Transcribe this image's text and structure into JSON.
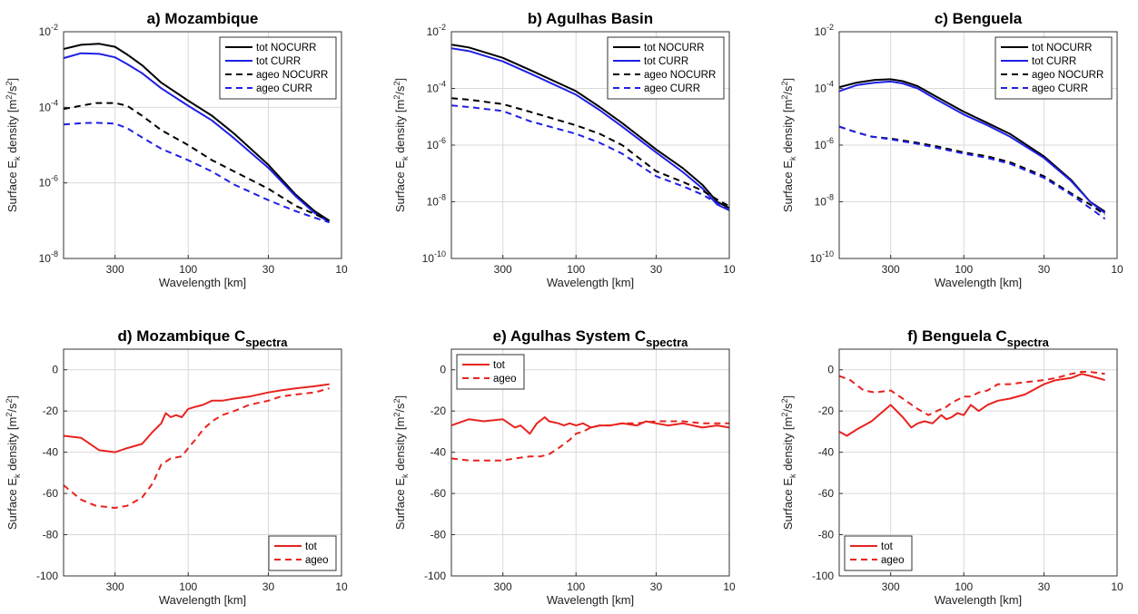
{
  "colors": {
    "black": "#000000",
    "blue": "#1f1fe6",
    "red": "#e8231f",
    "grid": "#d9d9d9"
  },
  "labels": {
    "xlabel": "Wavelength [km]",
    "ylabel_prefix": "Surface E",
    "ylabel_sub": "k",
    "ylabel_mid": " density [m",
    "ylabel_sup1": "2",
    "ylabel_mid2": "/s",
    "ylabel_sup2": "2",
    "ylabel_end": "]"
  },
  "chart_data": [
    {
      "panel": "a",
      "type": "line",
      "title": "a) Mozambique",
      "title_sub": "",
      "xlabel": "Wavelength [km]",
      "xscale": "log-reversed",
      "xlim": [
        650,
        10
      ],
      "xticks": [
        300,
        100,
        30,
        10
      ],
      "xtick_labels": [
        "300",
        "100",
        "30",
        "10"
      ],
      "yscale": "log",
      "ylim": [
        1e-08,
        0.01
      ],
      "yticks": [
        1e-08,
        1e-06,
        0.0001,
        0.01
      ],
      "ytick_exps": [
        "-8",
        "-6",
        "-4",
        "-2"
      ],
      "grid": true,
      "legend_position": "top-right",
      "series": [
        {
          "name": "tot NOCURR",
          "color": "#000000",
          "dash": "solid",
          "x": [
            650,
            500,
            380,
            300,
            250,
            200,
            150,
            100,
            70,
            50,
            30,
            20,
            15,
            12
          ],
          "y": [
            0.0035,
            0.0045,
            0.0048,
            0.004,
            0.0025,
            0.0013,
            0.00045,
            0.00015,
            6e-05,
            2e-05,
            3e-06,
            5e-07,
            1.8e-07,
            1e-07
          ]
        },
        {
          "name": "tot CURR",
          "color": "#1f1fe6",
          "dash": "solid",
          "x": [
            650,
            500,
            380,
            300,
            250,
            200,
            150,
            100,
            70,
            50,
            30,
            20,
            15,
            12
          ],
          "y": [
            0.002,
            0.0027,
            0.0026,
            0.0021,
            0.0014,
            0.0008,
            0.00032,
            0.00011,
            4.5e-05,
            1.5e-05,
            2.5e-06,
            4.5e-07,
            1.6e-07,
            9e-08
          ]
        },
        {
          "name": "ageo NOCURR",
          "color": "#000000",
          "dash": "dashed",
          "x": [
            650,
            500,
            400,
            300,
            250,
            200,
            150,
            100,
            70,
            50,
            30,
            20,
            15,
            12
          ],
          "y": [
            9e-05,
            0.00011,
            0.00013,
            0.00013,
            0.00011,
            6e-05,
            2.5e-05,
            1e-05,
            4e-06,
            2e-06,
            7e-07,
            2.5e-07,
            1.5e-07,
            1e-07
          ]
        },
        {
          "name": "ageo CURR",
          "color": "#1f1fe6",
          "dash": "dashed",
          "x": [
            650,
            500,
            400,
            300,
            250,
            200,
            150,
            100,
            70,
            50,
            30,
            20,
            15,
            12
          ],
          "y": [
            3.5e-05,
            3.8e-05,
            3.9e-05,
            3.7e-05,
            2.8e-05,
            1.6e-05,
            8e-06,
            4e-06,
            2e-06,
            9e-07,
            3.5e-07,
            1.8e-07,
            1.2e-07,
            9e-08
          ]
        }
      ]
    },
    {
      "panel": "b",
      "type": "line",
      "title": "b) Agulhas Basin",
      "title_sub": "",
      "xlabel": "Wavelength [km]",
      "xscale": "log-reversed",
      "xlim": [
        650,
        10
      ],
      "xticks": [
        300,
        100,
        30,
        10
      ],
      "xtick_labels": [
        "300",
        "100",
        "30",
        "10"
      ],
      "yscale": "log",
      "ylim": [
        1e-10,
        0.01
      ],
      "yticks": [
        1e-10,
        1e-08,
        1e-06,
        0.0001,
        0.01
      ],
      "ytick_exps": [
        "-10",
        "-8",
        "-6",
        "-4",
        "-2"
      ],
      "grid": true,
      "legend_position": "top-right",
      "series": [
        {
          "name": "tot NOCURR",
          "color": "#000000",
          "dash": "solid",
          "x": [
            650,
            500,
            300,
            200,
            100,
            70,
            50,
            30,
            20,
            15,
            12,
            10
          ],
          "y": [
            0.0035,
            0.0028,
            0.0012,
            0.00045,
            8e-05,
            2.2e-05,
            6e-06,
            7e-07,
            1.5e-07,
            4e-08,
            1e-08,
            6e-09
          ]
        },
        {
          "name": "tot CURR",
          "color": "#1f1fe6",
          "dash": "solid",
          "x": [
            650,
            500,
            300,
            200,
            100,
            70,
            50,
            30,
            20,
            15,
            12,
            10
          ],
          "y": [
            0.0026,
            0.0021,
            0.0009,
            0.00034,
            6e-05,
            1.7e-05,
            4.5e-06,
            5.5e-07,
            1.1e-07,
            3e-08,
            8e-09,
            5e-09
          ]
        },
        {
          "name": "ageo NOCURR",
          "color": "#000000",
          "dash": "dashed",
          "x": [
            650,
            500,
            300,
            200,
            100,
            70,
            50,
            30,
            20,
            15,
            12,
            10
          ],
          "y": [
            4.5e-05,
            4e-05,
            2.8e-05,
            1.5e-05,
            5e-06,
            2.5e-06,
            1e-06,
            1.2e-07,
            5e-08,
            2.5e-08,
            1.2e-08,
            7e-09
          ]
        },
        {
          "name": "ageo CURR",
          "color": "#1f1fe6",
          "dash": "dashed",
          "x": [
            650,
            500,
            300,
            200,
            100,
            70,
            50,
            30,
            20,
            15,
            12,
            10
          ],
          "y": [
            2.5e-05,
            2.2e-05,
            1.6e-05,
            7e-06,
            2.5e-06,
            1.2e-06,
            5e-07,
            8e-08,
            3.5e-08,
            1.8e-08,
            9e-09,
            5e-09
          ]
        }
      ]
    },
    {
      "panel": "c",
      "type": "line",
      "title": "c) Benguela",
      "title_sub": "",
      "xlabel": "Wavelength [km]",
      "xscale": "log-reversed",
      "xlim": [
        650,
        10
      ],
      "xticks": [
        300,
        100,
        30,
        10
      ],
      "xtick_labels": [
        "300",
        "100",
        "30",
        "10"
      ],
      "yscale": "log",
      "ylim": [
        1e-10,
        0.01
      ],
      "yticks": [
        1e-10,
        1e-08,
        1e-06,
        0.0001,
        0.01
      ],
      "ytick_exps": [
        "-10",
        "-8",
        "-6",
        "-4",
        "-2"
      ],
      "grid": true,
      "legend_position": "top-right",
      "series": [
        {
          "name": "tot NOCURR",
          "color": "#000000",
          "dash": "solid",
          "x": [
            650,
            500,
            380,
            300,
            250,
            200,
            150,
            100,
            70,
            50,
            30,
            20,
            15,
            12
          ],
          "y": [
            0.00011,
            0.00016,
            0.0002,
            0.00021,
            0.00018,
            0.00012,
            5e-05,
            1.5e-05,
            6e-06,
            2.5e-06,
            4e-07,
            6e-08,
            1e-08,
            4.5e-09
          ]
        },
        {
          "name": "tot CURR",
          "color": "#1f1fe6",
          "dash": "solid",
          "x": [
            650,
            500,
            380,
            300,
            250,
            200,
            150,
            100,
            70,
            50,
            30,
            20,
            15,
            12
          ],
          "y": [
            8e-05,
            0.00013,
            0.00016,
            0.000175,
            0.00015,
            0.0001,
            4e-05,
            1.2e-05,
            5e-06,
            2e-06,
            3.5e-07,
            5.5e-08,
            1e-08,
            4e-09
          ]
        },
        {
          "name": "ageo NOCURR",
          "color": "#000000",
          "dash": "dashed",
          "x": [
            650,
            500,
            400,
            300,
            200,
            150,
            100,
            70,
            50,
            30,
            20,
            15,
            12
          ],
          "y": [
            4.5e-06,
            2.8e-06,
            2e-06,
            1.7e-06,
            1.2e-06,
            9e-07,
            5.5e-07,
            4e-07,
            2.5e-07,
            8e-08,
            2e-08,
            8e-09,
            3.5e-09
          ]
        },
        {
          "name": "ageo CURR",
          "color": "#1f1fe6",
          "dash": "dashed",
          "x": [
            650,
            500,
            400,
            300,
            200,
            150,
            100,
            70,
            50,
            30,
            20,
            15,
            12
          ],
          "y": [
            4.5e-06,
            2.8e-06,
            2e-06,
            1.6e-06,
            1.1e-06,
            8e-07,
            5e-07,
            3.5e-07,
            2.2e-07,
            7e-08,
            1.8e-08,
            6e-09,
            2.5e-09
          ]
        }
      ]
    },
    {
      "panel": "d",
      "type": "line",
      "title": "d) Mozambique C",
      "title_sub": "spectra",
      "xlabel": "Wavelength [km]",
      "xscale": "log-reversed",
      "xlim": [
        650,
        10
      ],
      "xticks": [
        300,
        100,
        30,
        10
      ],
      "xtick_labels": [
        "300",
        "100",
        "30",
        "10"
      ],
      "yscale": "linear",
      "ylim": [
        -100,
        10
      ],
      "yticks": [
        -100,
        -80,
        -60,
        -40,
        -20,
        0
      ],
      "ytick_labels": [
        "-100",
        "-80",
        "-60",
        "-40",
        "-20",
        "0"
      ],
      "grid": true,
      "legend_position": "bottom-right",
      "series": [
        {
          "name": "tot",
          "color": "#e8231f",
          "dash": "solid",
          "x": [
            650,
            500,
            380,
            300,
            250,
            200,
            170,
            150,
            140,
            130,
            120,
            110,
            100,
            90,
            80,
            70,
            60,
            50,
            40,
            30,
            25,
            20,
            15,
            12
          ],
          "y": [
            -32,
            -33,
            -39,
            -40,
            -38,
            -36,
            -30,
            -26,
            -21,
            -23,
            -22,
            -23,
            -19,
            -18,
            -17,
            -15,
            -15,
            -14,
            -13,
            -11,
            -10,
            -9,
            -8,
            -7
          ]
        },
        {
          "name": "ageo",
          "color": "#e8231f",
          "dash": "dashed",
          "x": [
            650,
            500,
            400,
            300,
            250,
            200,
            170,
            150,
            130,
            110,
            100,
            90,
            80,
            70,
            60,
            50,
            40,
            30,
            25,
            20,
            15,
            12
          ],
          "y": [
            -56,
            -63,
            -66,
            -67,
            -66,
            -62,
            -55,
            -46,
            -43,
            -42,
            -38,
            -34,
            -29,
            -25,
            -22,
            -20,
            -17,
            -15,
            -13,
            -12,
            -11,
            -9
          ]
        }
      ]
    },
    {
      "panel": "e",
      "type": "line",
      "title": "e) Agulhas System C",
      "title_sub": "spectra",
      "xlabel": "Wavelength [km]",
      "xscale": "log-reversed",
      "xlim": [
        650,
        10
      ],
      "xticks": [
        300,
        100,
        30,
        10
      ],
      "xtick_labels": [
        "300",
        "100",
        "30",
        "10"
      ],
      "yscale": "linear",
      "ylim": [
        -100,
        10
      ],
      "yticks": [
        -100,
        -80,
        -60,
        -40,
        -20,
        0
      ],
      "ytick_labels": [
        "-100",
        "-80",
        "-60",
        "-40",
        "-20",
        "0"
      ],
      "grid": true,
      "legend_position": "top-left",
      "series": [
        {
          "name": "tot",
          "color": "#e8231f",
          "dash": "solid",
          "x": [
            650,
            500,
            400,
            300,
            250,
            230,
            200,
            180,
            160,
            150,
            130,
            120,
            110,
            100,
            90,
            80,
            70,
            60,
            50,
            40,
            35,
            30,
            25,
            20,
            15,
            12,
            10
          ],
          "y": [
            -27,
            -24,
            -25,
            -24,
            -28,
            -27,
            -31,
            -26,
            -23,
            -25,
            -26,
            -27,
            -26,
            -27,
            -26,
            -28,
            -27,
            -27,
            -26,
            -27,
            -25,
            -26,
            -27,
            -26,
            -28,
            -27,
            -28
          ]
        },
        {
          "name": "ageo",
          "color": "#e8231f",
          "dash": "dashed",
          "x": [
            650,
            500,
            400,
            300,
            250,
            200,
            170,
            150,
            130,
            110,
            100,
            90,
            80,
            70,
            60,
            50,
            40,
            30,
            25,
            20,
            15,
            12,
            10
          ],
          "y": [
            -43,
            -44,
            -44,
            -44,
            -43,
            -42,
            -42,
            -41,
            -38,
            -34,
            -31,
            -30,
            -28,
            -27,
            -27,
            -26,
            -26,
            -25,
            -25,
            -25,
            -26,
            -26,
            -26
          ]
        }
      ]
    },
    {
      "panel": "f",
      "type": "line",
      "title": "f) Benguela C",
      "title_sub": "spectra",
      "xlabel": "Wavelength [km]",
      "xscale": "log-reversed",
      "xlim": [
        650,
        10
      ],
      "xticks": [
        300,
        100,
        30,
        10
      ],
      "xtick_labels": [
        "300",
        "100",
        "30",
        "10"
      ],
      "yscale": "linear",
      "ylim": [
        -100,
        10
      ],
      "yticks": [
        -100,
        -80,
        -60,
        -40,
        -20,
        0
      ],
      "ytick_labels": [
        "-100",
        "-80",
        "-60",
        "-40",
        "-20",
        "0"
      ],
      "grid": true,
      "legend_position": "bottom-left",
      "series": [
        {
          "name": "tot",
          "color": "#e8231f",
          "dash": "solid",
          "x": [
            650,
            580,
            500,
            400,
            300,
            250,
            220,
            200,
            180,
            160,
            150,
            140,
            130,
            120,
            110,
            100,
            90,
            80,
            70,
            60,
            50,
            40,
            30,
            25,
            20,
            17,
            15,
            12
          ],
          "y": [
            -30,
            -32,
            -29,
            -25,
            -17,
            -23,
            -28,
            -26,
            -25,
            -26,
            -24,
            -22,
            -24,
            -23,
            -21,
            -22,
            -17,
            -20,
            -17,
            -15,
            -14,
            -12,
            -7,
            -5,
            -4,
            -2,
            -3,
            -5
          ]
        },
        {
          "name": "ageo",
          "color": "#e8231f",
          "dash": "dashed",
          "x": [
            650,
            550,
            450,
            380,
            300,
            250,
            200,
            170,
            150,
            130,
            120,
            100,
            90,
            80,
            70,
            60,
            50,
            40,
            30,
            25,
            20,
            17,
            15,
            12
          ],
          "y": [
            -3,
            -5,
            -10,
            -11,
            -10,
            -14,
            -19,
            -22,
            -20,
            -18,
            -16,
            -13,
            -13,
            -11,
            -10,
            -7,
            -7,
            -6,
            -5,
            -4,
            -2,
            -1,
            -1,
            -2
          ]
        }
      ]
    }
  ]
}
